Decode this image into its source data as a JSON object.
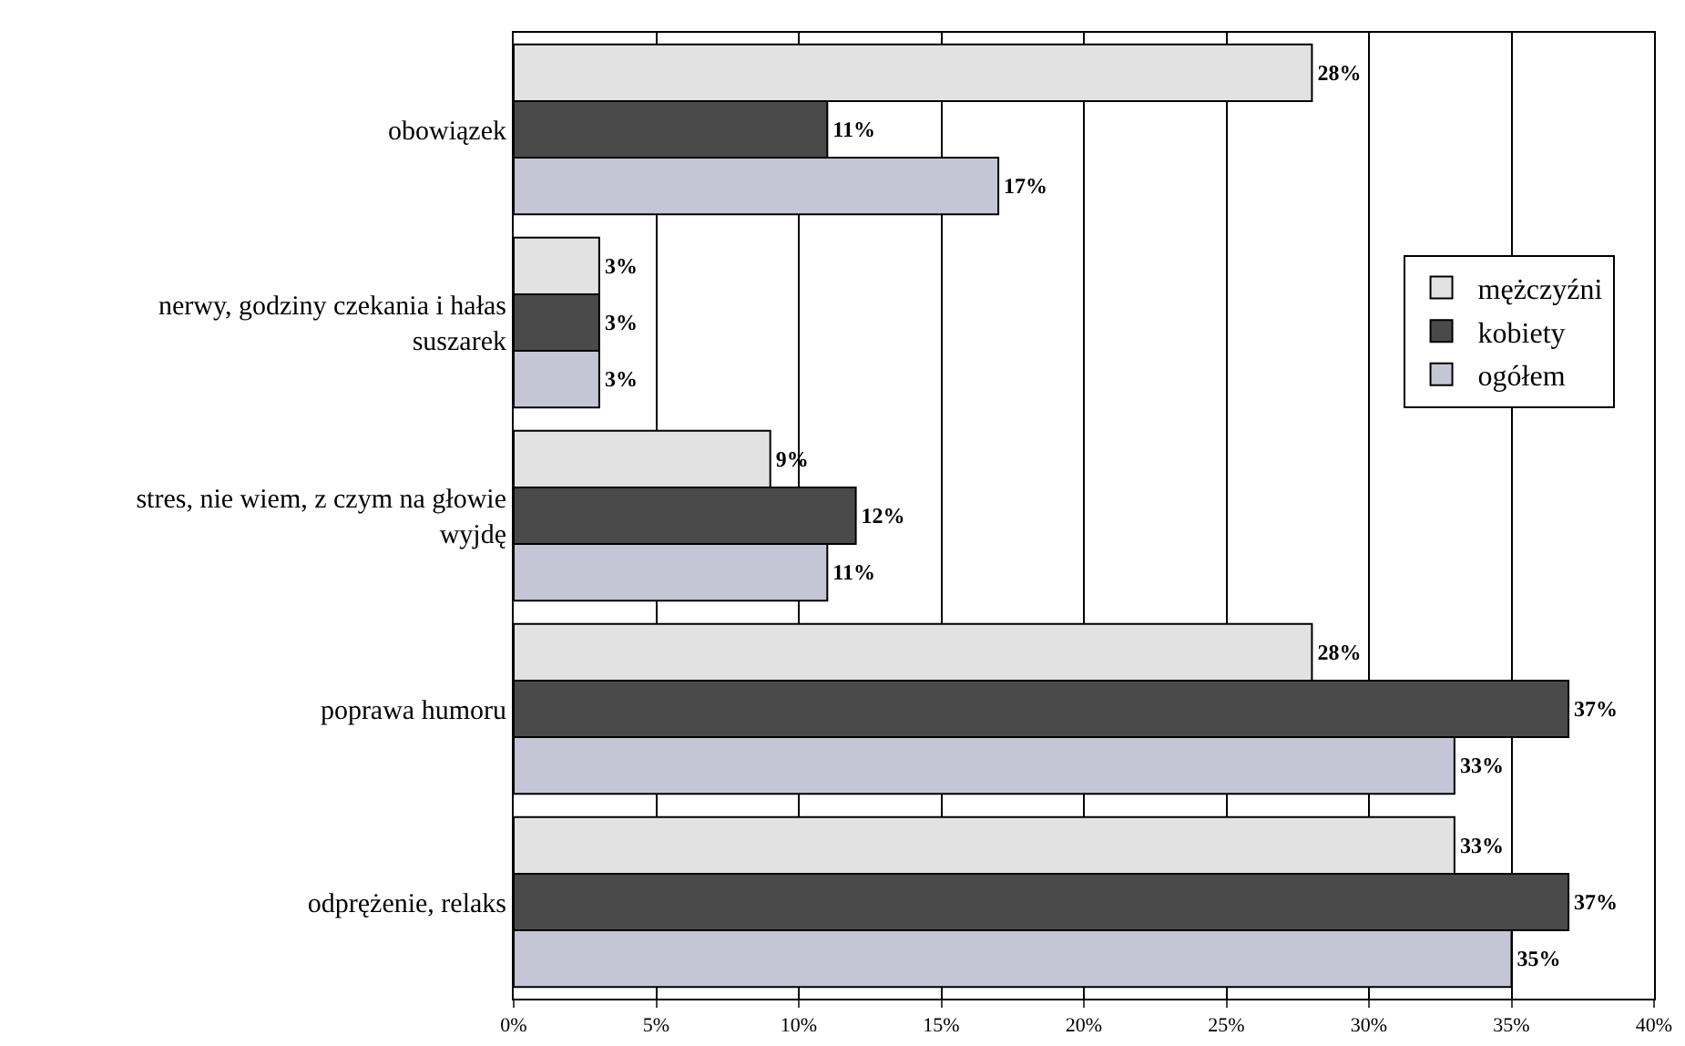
{
  "chart_data": {
    "type": "bar",
    "orientation": "horizontal",
    "categories": [
      "obowiązek",
      "nerwy, godziny czekania i hałas suszarek",
      "stres, nie wiem, z czym na głowie wyjdę",
      "poprawa humoru",
      "odprężenie, relaks"
    ],
    "series": [
      {
        "name": "mężczyźni",
        "color": "#e2e2e2",
        "values": [
          28,
          3,
          9,
          28,
          33
        ],
        "value_labels": [
          "28%",
          "3%",
          "9%",
          "28%",
          "33%"
        ]
      },
      {
        "name": "kobiety",
        "color": "#4a4a4a",
        "values": [
          11,
          3,
          12,
          37,
          37
        ],
        "value_labels": [
          "11%",
          "3%",
          "12%",
          "37%",
          "37%"
        ]
      },
      {
        "name": "ogółem",
        "color": "#c4c6d6",
        "values": [
          17,
          3,
          11,
          33,
          35
        ],
        "value_labels": [
          "17%",
          "3%",
          "11%",
          "33%",
          "35%"
        ]
      }
    ],
    "xlim": [
      0,
      40
    ],
    "xticks": [
      {
        "value": 0,
        "label": "0%"
      },
      {
        "value": 5,
        "label": "5%"
      },
      {
        "value": 10,
        "label": "10%"
      },
      {
        "value": 15,
        "label": "15%"
      },
      {
        "value": 20,
        "label": "20%"
      },
      {
        "value": 25,
        "label": "25%"
      },
      {
        "value": 30,
        "label": "30%"
      },
      {
        "value": 35,
        "label": "35%"
      },
      {
        "value": 40,
        "label": "40%"
      }
    ],
    "grid": "x",
    "legend": "right"
  }
}
